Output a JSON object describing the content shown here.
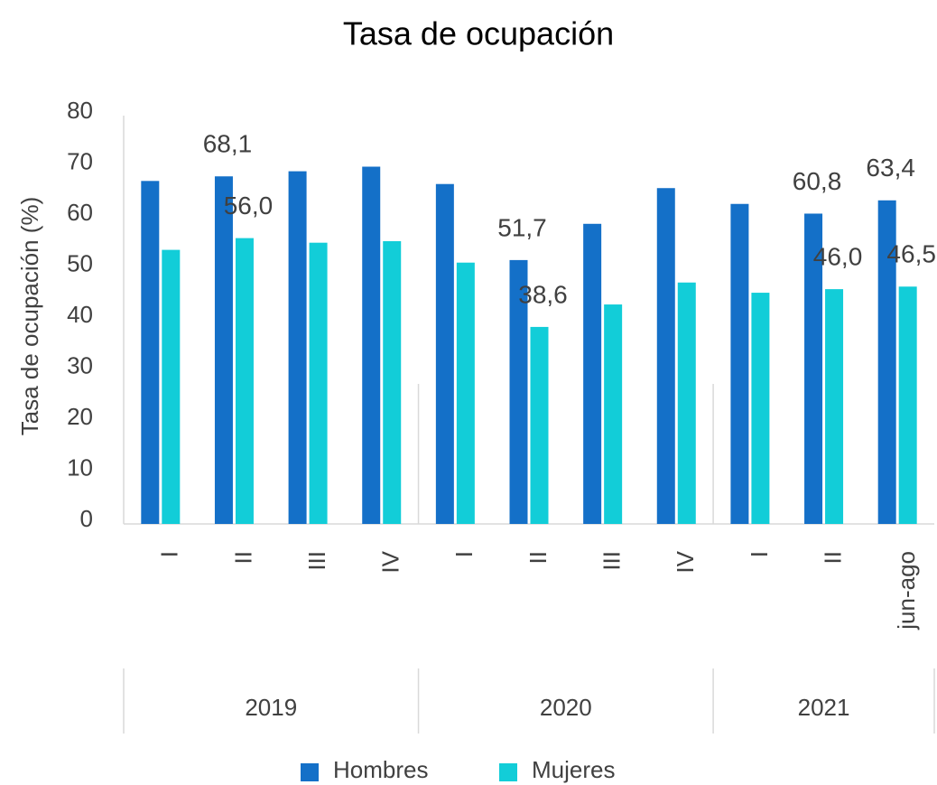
{
  "chart_data": {
    "type": "bar",
    "title": "Tasa de ocupación",
    "y_label": "Tasa de ocupación (%)",
    "categories": [
      "I",
      "II",
      "III",
      "IV",
      "I",
      "II",
      "III",
      "IV",
      "I",
      "II",
      "jun-ago"
    ],
    "groups": [
      {
        "name": "2019",
        "count": 4
      },
      {
        "name": "2020",
        "count": 4
      },
      {
        "name": "2021",
        "count": 3
      }
    ],
    "series": [
      {
        "name": "Hombres",
        "color": "#1470c8",
        "values": [
          67.2,
          68.1,
          69.1,
          70.0,
          66.6,
          51.7,
          58.8,
          65.8,
          62.7,
          60.8,
          63.4
        ],
        "value_labels": [
          null,
          "68,1",
          null,
          null,
          null,
          "51,7",
          null,
          null,
          null,
          "60,8",
          "63,4"
        ]
      },
      {
        "name": "Mujeres",
        "color": "#12cdd8",
        "values": [
          53.7,
          56.0,
          55.1,
          55.4,
          51.2,
          38.6,
          43.0,
          47.3,
          45.3,
          46.0,
          46.5
        ],
        "value_labels": [
          null,
          "56,0",
          null,
          null,
          null,
          "38,6",
          null,
          null,
          null,
          "46,0",
          "46,5"
        ]
      }
    ],
    "ylim": [
      0,
      80
    ],
    "yticks": [
      0,
      10,
      20,
      30,
      40,
      50,
      60,
      70,
      80
    ],
    "grid": false,
    "legend": "bottom"
  }
}
